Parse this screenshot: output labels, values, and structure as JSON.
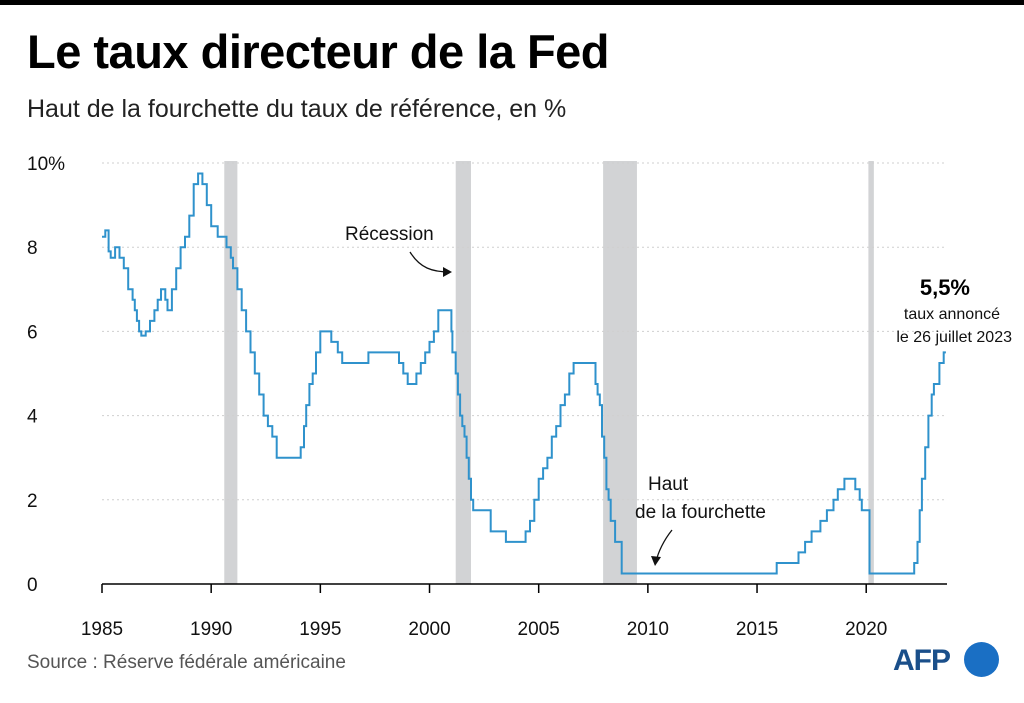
{
  "header": {
    "title": "Le taux directeur de la Fed",
    "subtitle": "Haut de la fourchette du taux de référence, en %"
  },
  "footer": {
    "source": "Source : Réserve fédérale américaine",
    "logo_text": "AFP"
  },
  "colors": {
    "line": "#2f92cc",
    "recession": "#d2d3d5",
    "grid": "#cfcfcf",
    "axis": "#000000",
    "logo_blue": "#1a6fc4"
  },
  "chart_data": {
    "type": "line",
    "title": "Le taux directeur de la Fed",
    "subtitle": "Haut de la fourchette du taux de référence, en %",
    "xlim": [
      1985,
      2023.7
    ],
    "ylim": [
      0,
      10
    ],
    "x_ticks": [
      1985,
      1990,
      1995,
      2000,
      2005,
      2010,
      2015,
      2020
    ],
    "x_tick_labels": [
      "1985",
      "1990",
      "1995",
      "2000",
      "2005",
      "2010",
      "2015",
      "2020"
    ],
    "y_ticks": [
      0,
      2,
      4,
      6,
      8,
      10
    ],
    "y_tick_labels": [
      "0",
      "2",
      "4",
      "6",
      "8",
      "10%"
    ],
    "grid": true,
    "recessions": [
      {
        "start": 1990.6,
        "end": 1991.2
      },
      {
        "start": 2001.2,
        "end": 2001.9
      },
      {
        "start": 2007.95,
        "end": 2009.5
      },
      {
        "start": 2020.1,
        "end": 2020.35
      }
    ],
    "series": [
      {
        "name": "",
        "x": [
          1985.0,
          1985.15,
          1985.3,
          1985.4,
          1985.6,
          1985.8,
          1986.0,
          1986.2,
          1986.4,
          1986.5,
          1986.6,
          1986.7,
          1986.8,
          1987.0,
          1987.2,
          1987.4,
          1987.55,
          1987.7,
          1987.9,
          1988.0,
          1988.2,
          1988.4,
          1988.6,
          1988.8,
          1989.0,
          1989.2,
          1989.4,
          1989.6,
          1989.8,
          1990.0,
          1990.3,
          1990.5,
          1990.7,
          1990.9,
          1991.0,
          1991.2,
          1991.4,
          1991.6,
          1991.8,
          1992.0,
          1992.2,
          1992.4,
          1992.6,
          1992.8,
          1993.0,
          1993.5,
          1994.0,
          1994.1,
          1994.25,
          1994.35,
          1994.5,
          1994.65,
          1994.8,
          1995.0,
          1995.5,
          1995.8,
          1996.0,
          1997.0,
          1997.2,
          1998.0,
          1998.6,
          1998.8,
          1999.0,
          1999.4,
          1999.6,
          1999.8,
          2000.0,
          2000.2,
          2000.4,
          2000.5,
          2001.0,
          2001.05,
          2001.2,
          2001.3,
          2001.4,
          2001.5,
          2001.6,
          2001.7,
          2001.8,
          2001.9,
          2002.0,
          2002.8,
          2003.5,
          2004.4,
          2004.6,
          2004.8,
          2005.0,
          2005.2,
          2005.4,
          2005.6,
          2005.8,
          2006.0,
          2006.2,
          2006.4,
          2006.6,
          2007.6,
          2007.7,
          2007.8,
          2007.9,
          2008.0,
          2008.1,
          2008.2,
          2008.3,
          2008.5,
          2008.8,
          2009.0,
          2015.9,
          2016.9,
          2017.2,
          2017.5,
          2017.9,
          2018.2,
          2018.5,
          2018.7,
          2019.0,
          2019.5,
          2019.7,
          2019.8,
          2020.15,
          2020.2,
          2022.2,
          2022.35,
          2022.45,
          2022.55,
          2022.7,
          2022.85,
          2023.0,
          2023.1,
          2023.35,
          2023.55
        ],
        "values": [
          8.25,
          8.4,
          7.9,
          7.75,
          8.0,
          7.75,
          7.5,
          7.0,
          6.75,
          6.5,
          6.25,
          6.0,
          5.9,
          6.0,
          6.25,
          6.5,
          6.75,
          7.0,
          6.75,
          6.5,
          7.0,
          7.5,
          8.0,
          8.25,
          8.75,
          9.5,
          9.75,
          9.5,
          9.0,
          8.5,
          8.25,
          8.25,
          8.0,
          7.75,
          7.5,
          7.0,
          6.5,
          6.0,
          5.5,
          5.0,
          4.5,
          4.0,
          3.75,
          3.5,
          3.0,
          3.0,
          3.0,
          3.25,
          3.75,
          4.25,
          4.75,
          5.0,
          5.5,
          6.0,
          5.75,
          5.5,
          5.25,
          5.25,
          5.5,
          5.5,
          5.25,
          5.0,
          4.75,
          5.0,
          5.25,
          5.5,
          5.75,
          6.0,
          6.5,
          6.5,
          6.0,
          5.5,
          5.0,
          4.5,
          4.0,
          3.75,
          3.5,
          3.0,
          2.5,
          2.0,
          1.75,
          1.25,
          1.0,
          1.25,
          1.5,
          2.0,
          2.5,
          2.75,
          3.0,
          3.5,
          3.75,
          4.25,
          4.5,
          5.0,
          5.25,
          4.75,
          4.5,
          4.25,
          3.5,
          3.0,
          2.25,
          2.0,
          1.5,
          1.0,
          0.25,
          0.25,
          0.5,
          0.75,
          1.0,
          1.25,
          1.5,
          1.75,
          2.0,
          2.25,
          2.5,
          2.25,
          2.0,
          1.75,
          0.25,
          0.25,
          0.5,
          1.0,
          1.75,
          2.5,
          3.25,
          4.0,
          4.5,
          4.75,
          5.25,
          5.5
        ]
      }
    ],
    "annotations": {
      "recession_label": "Récession",
      "range_label_line1": "Haut",
      "range_label_line2": "de la fourchette",
      "end_value": "5,5%",
      "end_note_line1": "taux annoncé",
      "end_note_line2": "le 26 juillet 2023"
    }
  }
}
